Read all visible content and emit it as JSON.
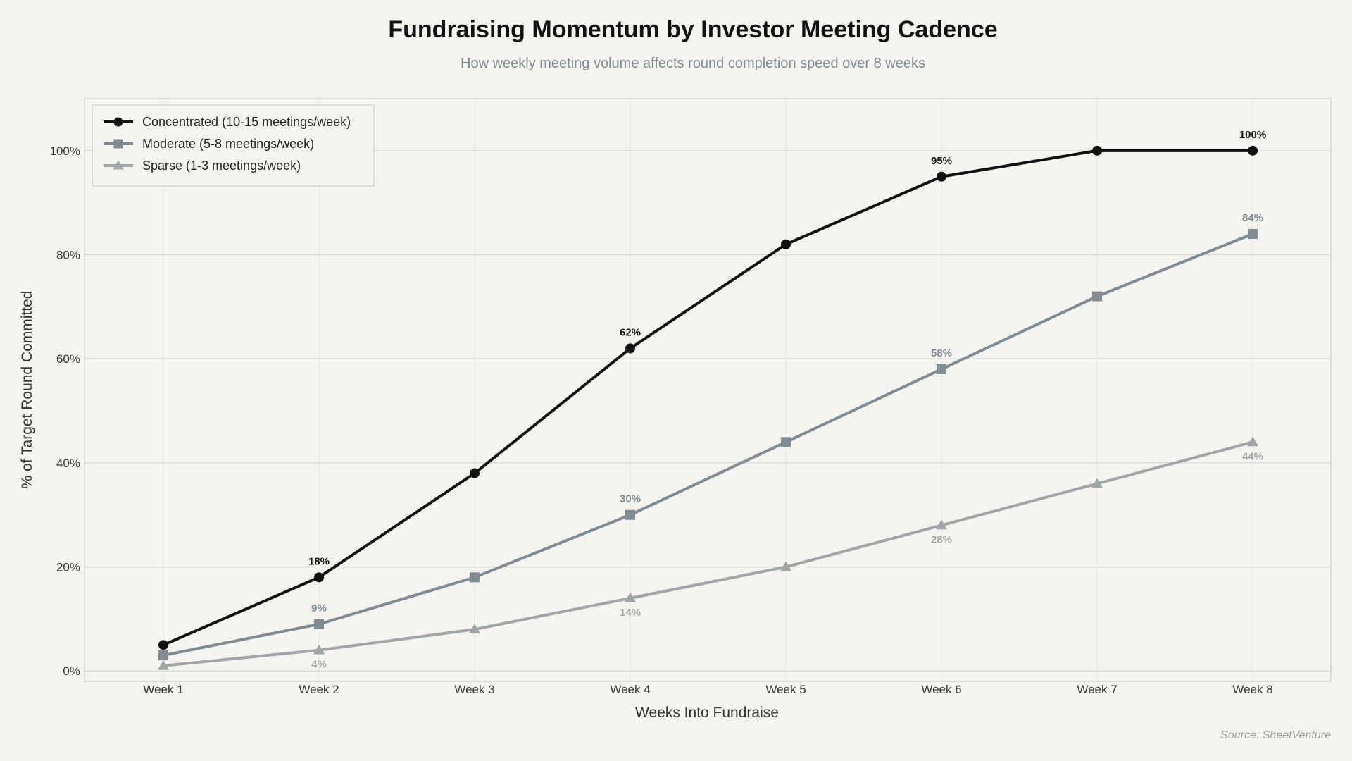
{
  "chart_data": {
    "type": "line",
    "title": "Fundraising Momentum by Investor Meeting Cadence",
    "subtitle": "How weekly meeting volume affects round completion speed over 8 weeks",
    "xlabel": "Weeks Into Fundraise",
    "ylabel": "% of Target Round Committed",
    "categories": [
      "Week 1",
      "Week 2",
      "Week 3",
      "Week 4",
      "Week 5",
      "Week 6",
      "Week 7",
      "Week 8"
    ],
    "ylim": [
      -2,
      110
    ],
    "yticks": [
      0,
      20,
      40,
      60,
      80,
      100
    ],
    "ytick_labels": [
      "0%",
      "20%",
      "40%",
      "60%",
      "80%",
      "100%"
    ],
    "grid": true,
    "legend_position": "top-left",
    "series": [
      {
        "name": "Concentrated (10-15 meetings/week)",
        "values": [
          5,
          18,
          38,
          62,
          82,
          95,
          100,
          100
        ],
        "color": "#111111",
        "marker": "circle",
        "labeled_points": [
          {
            "index": 1,
            "text": "18%"
          },
          {
            "index": 3,
            "text": "62%"
          },
          {
            "index": 5,
            "text": "95%"
          },
          {
            "index": 7,
            "text": "100%"
          }
        ]
      },
      {
        "name": "Moderate (5-8 meetings/week)",
        "values": [
          3,
          9,
          18,
          30,
          44,
          58,
          72,
          84
        ],
        "color": "#7f8c93",
        "marker": "square",
        "labeled_points": [
          {
            "index": 1,
            "text": "9%"
          },
          {
            "index": 3,
            "text": "30%"
          },
          {
            "index": 5,
            "text": "58%"
          },
          {
            "index": 7,
            "text": "84%"
          }
        ]
      },
      {
        "name": "Sparse (1-3 meetings/week)",
        "values": [
          1,
          4,
          8,
          14,
          20,
          28,
          36,
          44
        ],
        "color": "#a0a5a7",
        "marker": "triangle",
        "labeled_points": [
          {
            "index": 1,
            "text": "4%"
          },
          {
            "index": 3,
            "text": "14%"
          },
          {
            "index": 5,
            "text": "28%"
          },
          {
            "index": 7,
            "text": "44%"
          }
        ]
      }
    ],
    "source": "Source: SheetVenture"
  }
}
